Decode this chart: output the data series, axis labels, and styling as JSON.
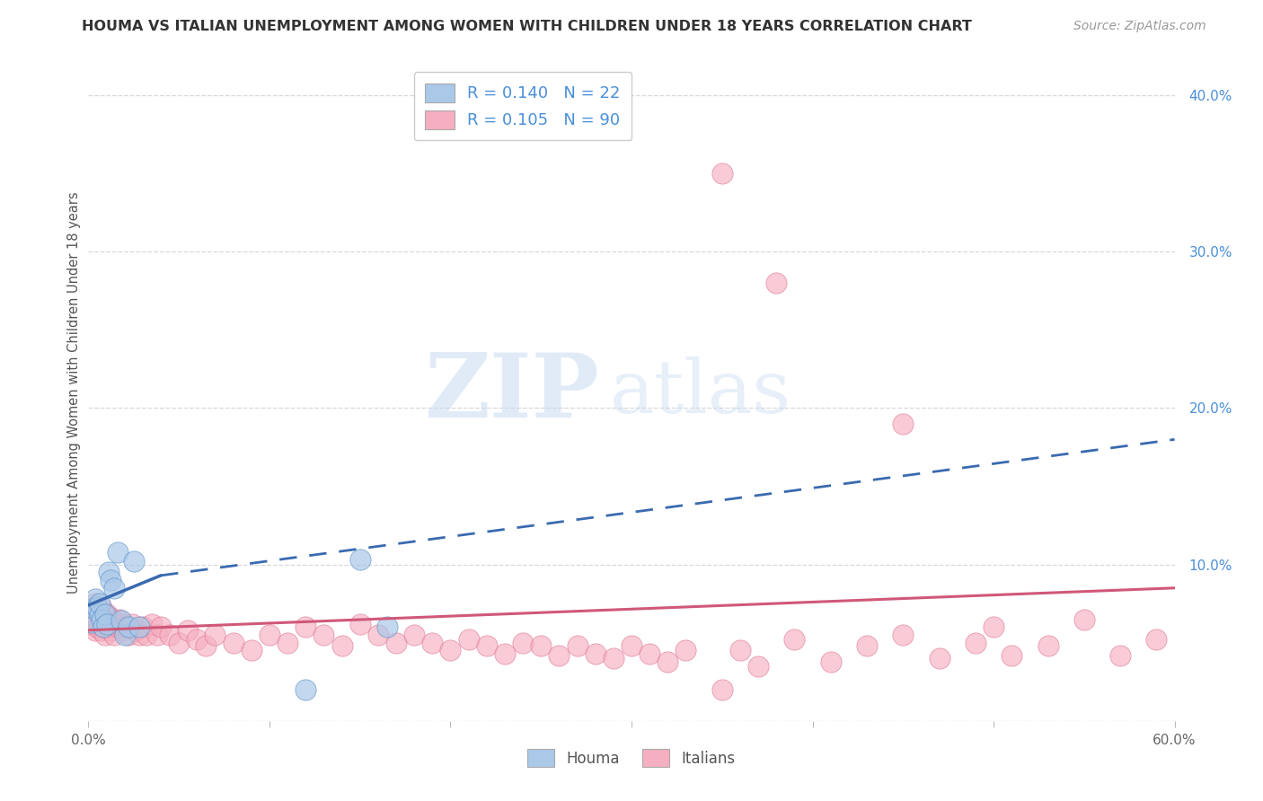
{
  "title": "HOUMA VS ITALIAN UNEMPLOYMENT AMONG WOMEN WITH CHILDREN UNDER 18 YEARS CORRELATION CHART",
  "source": "Source: ZipAtlas.com",
  "ylabel": "Unemployment Among Women with Children Under 18 years",
  "xlim": [
    0.0,
    0.6
  ],
  "ylim": [
    0.0,
    0.42
  ],
  "xtick_positions": [
    0.0,
    0.1,
    0.2,
    0.3,
    0.4,
    0.5,
    0.6
  ],
  "xtick_labels": [
    "0.0%",
    "",
    "",
    "",
    "",
    "",
    "60.0%"
  ],
  "yticks_right": [
    0.0,
    0.1,
    0.2,
    0.3,
    0.4
  ],
  "ytick_right_labels": [
    "",
    "10.0%",
    "20.0%",
    "30.0%",
    "40.0%"
  ],
  "houma_R": 0.14,
  "houma_N": 22,
  "italian_R": 0.105,
  "italian_N": 90,
  "houma_color": "#aac8e8",
  "houma_edge_color": "#5590c8",
  "houma_line_color": "#3a6ab0",
  "italian_color": "#f5afc0",
  "italian_edge_color": "#e07090",
  "italian_line_color": "#d05878",
  "legend_text_color": "#4a8fd8",
  "background_color": "#ffffff",
  "grid_color": "#d8d8d8",
  "bubble_size": 280,
  "houma_line_y_start": 0.074,
  "houma_line_y_solid_end": 0.093,
  "houma_line_y_end": 0.18,
  "houma_line_x_solid_end": 0.04,
  "italian_line_y_start": 0.058,
  "italian_line_y_end": 0.085,
  "houma_x": [
    0.002,
    0.003,
    0.004,
    0.005,
    0.006,
    0.006,
    0.007,
    0.008,
    0.009,
    0.01,
    0.011,
    0.012,
    0.014,
    0.016,
    0.018,
    0.02,
    0.022,
    0.025,
    0.028,
    0.12,
    0.15,
    0.165
  ],
  "houma_y": [
    0.063,
    0.072,
    0.078,
    0.073,
    0.068,
    0.075,
    0.065,
    0.06,
    0.068,
    0.062,
    0.095,
    0.09,
    0.085,
    0.108,
    0.064,
    0.055,
    0.06,
    0.102,
    0.06,
    0.02,
    0.103,
    0.06
  ],
  "italian_x": [
    0.001,
    0.002,
    0.003,
    0.003,
    0.004,
    0.004,
    0.005,
    0.005,
    0.005,
    0.006,
    0.006,
    0.007,
    0.007,
    0.007,
    0.008,
    0.008,
    0.009,
    0.009,
    0.01,
    0.01,
    0.011,
    0.012,
    0.012,
    0.013,
    0.014,
    0.015,
    0.016,
    0.017,
    0.018,
    0.019,
    0.02,
    0.022,
    0.024,
    0.026,
    0.028,
    0.03,
    0.032,
    0.035,
    0.038,
    0.04,
    0.045,
    0.05,
    0.055,
    0.06,
    0.065,
    0.07,
    0.08,
    0.09,
    0.1,
    0.11,
    0.12,
    0.13,
    0.14,
    0.15,
    0.16,
    0.17,
    0.18,
    0.19,
    0.2,
    0.21,
    0.22,
    0.23,
    0.24,
    0.25,
    0.26,
    0.27,
    0.28,
    0.29,
    0.3,
    0.31,
    0.32,
    0.33,
    0.35,
    0.36,
    0.37,
    0.39,
    0.41,
    0.43,
    0.45,
    0.47,
    0.49,
    0.51,
    0.53,
    0.55,
    0.57,
    0.59,
    0.35,
    0.45,
    0.38,
    0.5
  ],
  "italian_y": [
    0.062,
    0.068,
    0.065,
    0.072,
    0.058,
    0.075,
    0.06,
    0.07,
    0.065,
    0.062,
    0.068,
    0.058,
    0.065,
    0.072,
    0.06,
    0.068,
    0.055,
    0.063,
    0.06,
    0.068,
    0.062,
    0.058,
    0.066,
    0.06,
    0.055,
    0.062,
    0.06,
    0.065,
    0.062,
    0.058,
    0.06,
    0.055,
    0.062,
    0.058,
    0.055,
    0.06,
    0.055,
    0.062,
    0.055,
    0.06,
    0.055,
    0.05,
    0.058,
    0.052,
    0.048,
    0.055,
    0.05,
    0.045,
    0.055,
    0.05,
    0.06,
    0.055,
    0.048,
    0.062,
    0.055,
    0.05,
    0.055,
    0.05,
    0.045,
    0.052,
    0.048,
    0.043,
    0.05,
    0.048,
    0.042,
    0.048,
    0.043,
    0.04,
    0.048,
    0.043,
    0.038,
    0.045,
    0.02,
    0.045,
    0.035,
    0.052,
    0.038,
    0.048,
    0.055,
    0.04,
    0.05,
    0.042,
    0.048,
    0.065,
    0.042,
    0.052,
    0.35,
    0.19,
    0.28,
    0.06
  ]
}
